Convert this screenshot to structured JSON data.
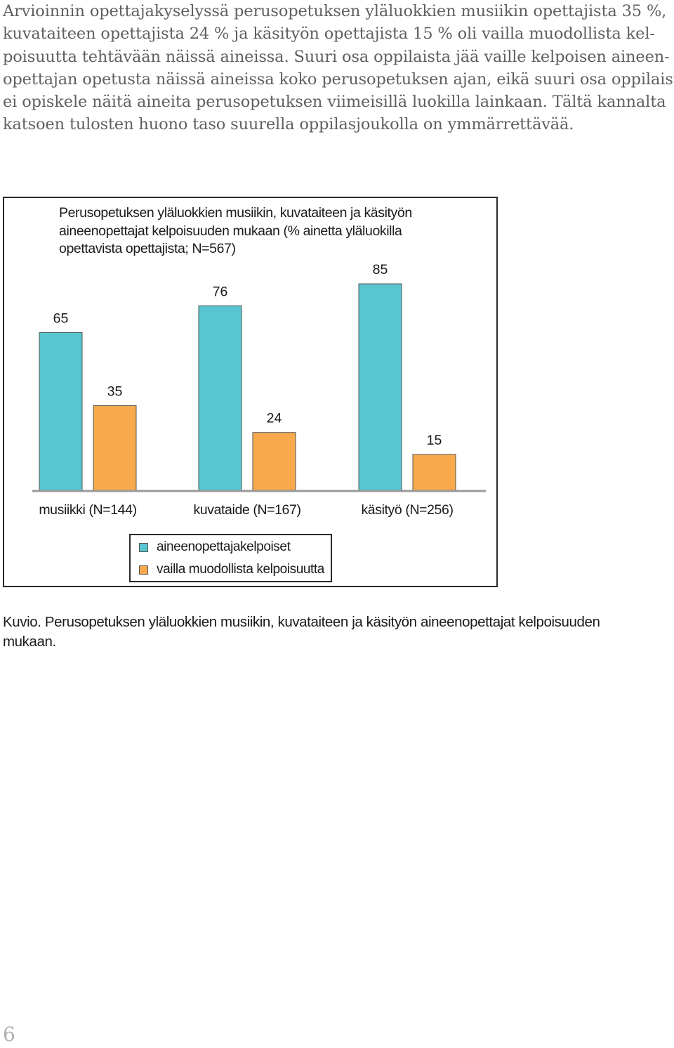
{
  "body_text": {
    "lines": [
      "Arvioinnin opettajakyselyssä perusopetuksen yläluokkien musiikin opettajista 35 %,",
      "kuvataiteen opettajista 24 % ja käsityön opettajista 15 % oli vailla muodollista kel-",
      "poisuutta tehtävään näissä aineissa. Suuri osa oppilaista jää vaille kelpoisen aineen-",
      "opettajan opetusta näissä aineissa koko perusopetuksen ajan, eikä suuri osa oppilaista",
      "ei opiskele näitä aineita perusopetuksen viimeisillä luokilla lainkaan. Tältä kannalta",
      "katsoen tulosten huono taso suurella oppilasjoukolla on ymmärrettävää."
    ]
  },
  "chart_data": {
    "type": "bar",
    "title_lines": [
      "Perusopetuksen yläluokkien musiikin, kuvataiteen ja käsityön",
      "aineenopettajat kelpoisuuden mukaan (% ainetta yläluokilla",
      "opettavista opettajista; N=567)"
    ],
    "categories": [
      "musiikki (N=144)",
      "kuvataide (N=167)",
      "käsityö (N=256)"
    ],
    "series": [
      {
        "name": "aineenopettajakelpoiset",
        "values": [
          65,
          76,
          85
        ],
        "color": "#58c6d0"
      },
      {
        "name": "vailla muodollista kelpoisuutta",
        "values": [
          35,
          24,
          15
        ],
        "color": "#f8a94b"
      }
    ],
    "ylim": [
      0,
      100
    ],
    "data_labels": true,
    "grid": false,
    "legend": "bottom"
  },
  "caption": {
    "lines": [
      "Kuvio. Perusopetuksen yläluokkien musiikin, kuvataiteen ja käsityön aineenopettajat kelpoisuuden",
      "mukaan."
    ]
  },
  "page_number": "6"
}
